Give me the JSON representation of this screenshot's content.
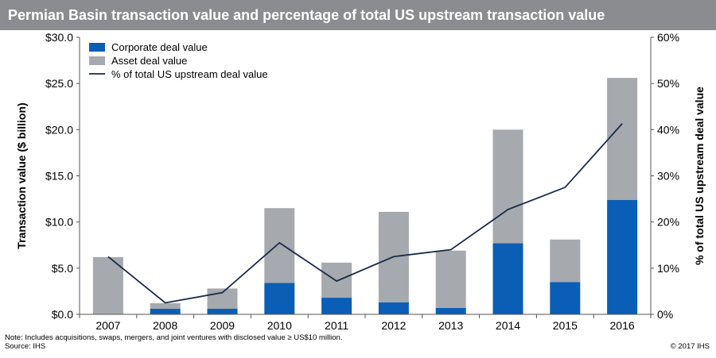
{
  "title": "Permian Basin transaction value and percentage of total US upstream transaction value",
  "note": "Note: Includes acquisitions, swaps, mergers, and joint ventures with disclosed value ≥ US$10 million.",
  "source": "Source: IHS",
  "credit": "© 2017 IHS",
  "colors": {
    "title_bg": "#8a8c8f",
    "corporate": "#0a5eb5",
    "asset": "#a6a9ad",
    "line": "#1b2a4a"
  },
  "chart_data": {
    "type": "bar",
    "stacked": true,
    "categories": [
      "2007",
      "2008",
      "2009",
      "2010",
      "2011",
      "2012",
      "2013",
      "2014",
      "2015",
      "2016"
    ],
    "series": [
      {
        "name": "Corporate deal value",
        "axis": "left",
        "type": "bar",
        "values": [
          0,
          0.6,
          0.6,
          3.4,
          1.8,
          1.3,
          0.7,
          7.7,
          3.5,
          12.4
        ]
      },
      {
        "name": "Asset deal value",
        "axis": "left",
        "type": "bar",
        "values": [
          6.2,
          0.6,
          2.2,
          8.1,
          3.8,
          9.8,
          6.2,
          12.3,
          4.6,
          13.2
        ]
      },
      {
        "name": "% of total US upstream deal value",
        "axis": "right",
        "type": "line",
        "values": [
          12.5,
          2.5,
          4.7,
          15.5,
          7.2,
          12.5,
          14.0,
          22.7,
          27.5,
          41.3
        ]
      }
    ],
    "ylabel": "Transaction value ($ billion)",
    "ylabel_right": "% of total US upstream deal value",
    "ylim": [
      0,
      30
    ],
    "ylim_right": [
      0,
      60
    ],
    "yticks": [
      "$0.0",
      "$5.0",
      "$10.0",
      "$15.0",
      "$20.0",
      "$25.0",
      "$30.0"
    ],
    "yticks_right": [
      "0%",
      "10%",
      "20%",
      "30%",
      "40%",
      "50%",
      "60%"
    ],
    "legend_position": "top-left",
    "grid": false
  }
}
